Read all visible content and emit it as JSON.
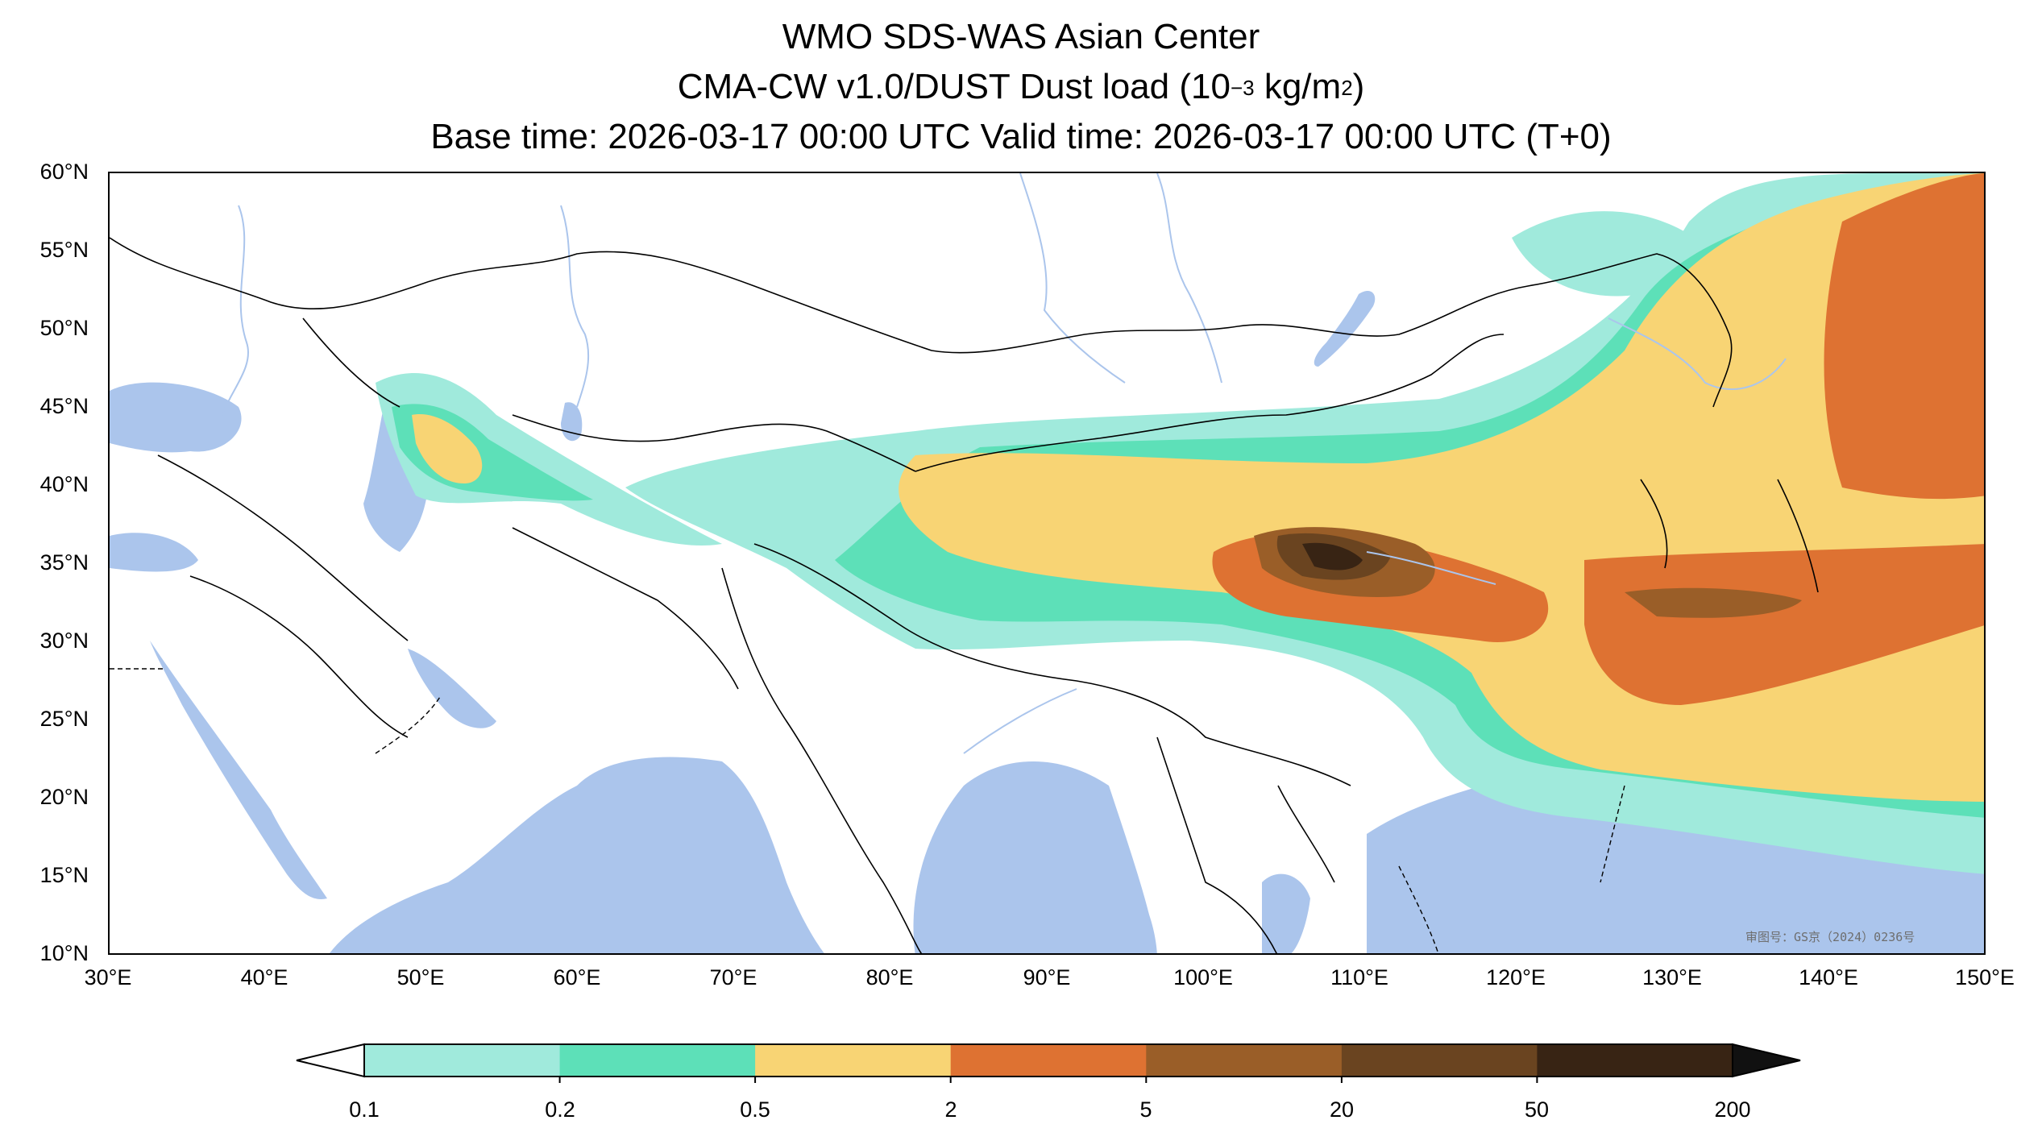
{
  "title": {
    "line1": "WMO SDS-WAS Asian Center",
    "line2_prefix": "CMA-CW v1.0/DUST Dust load (10",
    "line2_exp": "−3",
    "line2_unit": " kg/m",
    "line2_unit_exp": "2",
    "line2_suffix": ")",
    "line3": "Base time: 2026-03-17 00:00 UTC Valid time: 2026-03-17 00:00 UTC (T+0)"
  },
  "map": {
    "lon_range": [
      30,
      150
    ],
    "lat_range": [
      10,
      60
    ],
    "lat_ticks": [
      "60°N",
      "55°N",
      "50°N",
      "45°N",
      "40°N",
      "35°N",
      "30°N",
      "25°N",
      "20°N",
      "15°N",
      "10°N"
    ],
    "lon_ticks": [
      "30°E",
      "40°E",
      "50°E",
      "60°E",
      "70°E",
      "80°E",
      "90°E",
      "100°E",
      "110°E",
      "120°E",
      "130°E",
      "140°E",
      "150°E"
    ],
    "watermark": "审图号：GS京（2024）0236号",
    "colors": {
      "water": "#abc5ec",
      "land": "#ffffff",
      "river": "#abc5ec",
      "border": "#000000"
    }
  },
  "colorbar": {
    "labels": [
      "0.1",
      "0.2",
      "0.5",
      "2",
      "5",
      "20",
      "50",
      "200"
    ],
    "colors": [
      "#a0eadc",
      "#5de0b8",
      "#f8d474",
      "#de7232",
      "#9a5e28",
      "#6a4420",
      "#382414"
    ],
    "extend": "both"
  }
}
